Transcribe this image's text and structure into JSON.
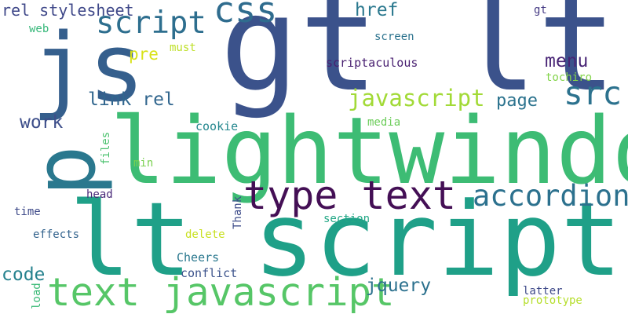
{
  "words": {
    "gt_lt": "gt lt",
    "lightwindow": "lightwindow",
    "lt_script": "lt script",
    "js": "js",
    "p": "p",
    "type_text": "type text",
    "text_javascript": "text javascript",
    "accordion": "accordion",
    "script": "script",
    "css": "css",
    "src": "src",
    "javascript": "javascript",
    "rel_stylesheet": "rel stylesheet",
    "link_rel": "link rel",
    "menu": "menu",
    "page": "page",
    "work": "work",
    "href": "href",
    "pre": "pre",
    "code": "code",
    "jquery": "jquery",
    "scriptaculous": "scriptaculous",
    "screen": "screen",
    "must": "must",
    "web": "web",
    "gt": "gt",
    "tochiro": "tochiro",
    "cookie": "cookie",
    "media": "media",
    "files": "files",
    "min": "min",
    "head": "head",
    "time": "time",
    "Thank": "Thank",
    "section": "section",
    "effects": "effects",
    "delete": "delete",
    "Cheers": "Cheers",
    "conflict": "conflict",
    "load": "load",
    "latter": "latter",
    "prototype": "prototype"
  },
  "colors": {
    "gt_lt": "#3b528b",
    "lightwindow": "#3dbc74",
    "lt_script": "#1fa088",
    "js": "#355f8d",
    "p": "#2a788e",
    "type_text": "#440f55",
    "text_javascript": "#56c667",
    "accordion": "#2c718e",
    "script": "#2d6e8e",
    "css": "#2f6c8e",
    "src": "#2c728e",
    "javascript": "#a2da37",
    "rel_stylesheet": "#3f4889",
    "link_rel": "#31668e",
    "menu": "#482475",
    "page": "#2c738e",
    "work": "#3d4e8a",
    "href": "#2a788e",
    "pre": "#d8e219",
    "code": "#26828e",
    "jquery": "#2c718e",
    "scriptaculous": "#481f70",
    "screen": "#2c738e",
    "must": "#bddf26",
    "web": "#35b779",
    "gt": "#443983",
    "tochiro": "#84d44b",
    "cookie": "#24878e",
    "media": "#6ccd5a",
    "files": "#4ac16d",
    "min": "#7ad151",
    "head": "#482878",
    "time": "#3e4a89",
    "Thank": "#3e4c8a",
    "section": "#22a785",
    "effects": "#33638d",
    "delete": "#c8e020",
    "Cheers": "#2a788e",
    "conflict": "#3b528b",
    "load": "#3aba76",
    "latter": "#3e4989",
    "prototype": "#b5de2b"
  }
}
